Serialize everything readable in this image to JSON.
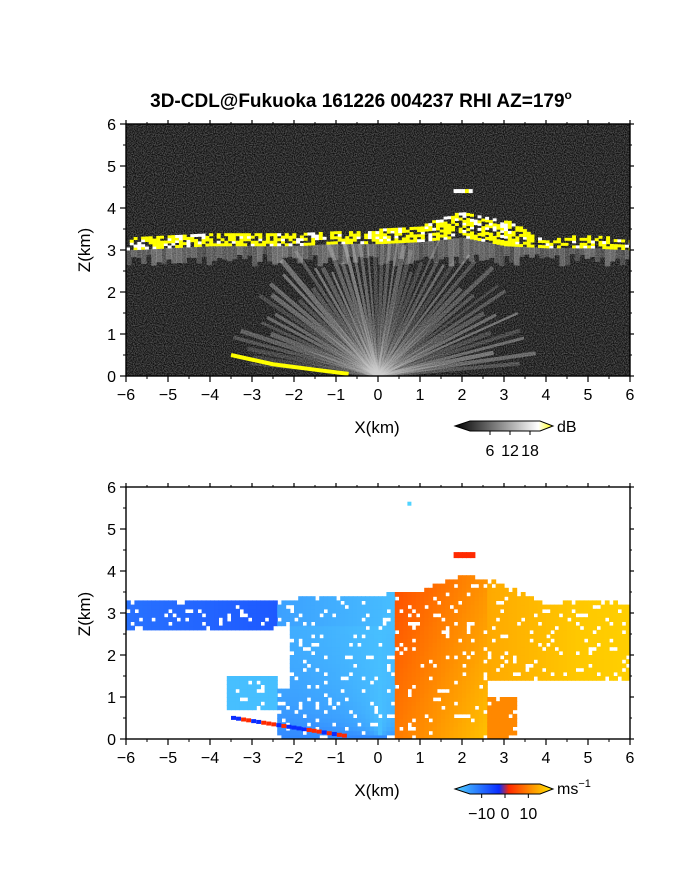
{
  "chart_data": {
    "title": "3D-CDL@Fukuoka 161226 004237 RHI AZ=179",
    "title_degree_mark": "o",
    "panels": [
      {
        "id": "reflectivity",
        "type": "heatmap",
        "xlabel": "X(km)",
        "ylabel": "Z(km)",
        "xlim": [
          -6,
          6
        ],
        "ylim": [
          0,
          6
        ],
        "x_ticks": [
          "−6",
          "−5",
          "−4",
          "−3",
          "−2",
          "−1",
          "0",
          "1",
          "2",
          "3",
          "4",
          "5",
          "6"
        ],
        "y_ticks": [
          "0",
          "1",
          "2",
          "3",
          "4",
          "5",
          "6"
        ],
        "colorbar": {
          "unit": "dB",
          "ticks": [
            "6",
            "12",
            "18"
          ],
          "tick_values": [
            6,
            12,
            18
          ],
          "range": [
            0,
            21
          ],
          "colors": [
            "#000000",
            "#ffffff",
            "#ffff00"
          ]
        },
        "cloud_layer": [
          [
            -6,
            3.0,
            3.3
          ],
          [
            -5,
            3.05,
            3.3
          ],
          [
            -4,
            3.1,
            3.35
          ],
          [
            -3,
            3.1,
            3.35
          ],
          [
            -2,
            3.1,
            3.35
          ],
          [
            -1,
            3.15,
            3.4
          ],
          [
            0,
            3.15,
            3.45
          ],
          [
            1,
            3.2,
            3.55
          ],
          [
            2,
            3.3,
            3.9
          ],
          [
            3,
            3.1,
            3.7
          ],
          [
            4,
            3.05,
            3.2
          ],
          [
            5,
            3.05,
            3.35
          ],
          [
            6,
            3.0,
            3.2
          ]
        ],
        "elevated_echo": [
          [
            1.8,
            4.4
          ],
          [
            2.2,
            4.4
          ]
        ],
        "surface_echo": [
          [
            -3.5,
            0.5
          ],
          [
            -2.5,
            0.28
          ],
          [
            -1.5,
            0.15
          ],
          [
            -0.7,
            0.05
          ]
        ]
      },
      {
        "id": "doppler_velocity",
        "type": "heatmap",
        "xlabel": "X(km)",
        "ylabel": "Z(km)",
        "xlim": [
          -6,
          6
        ],
        "ylim": [
          0,
          6
        ],
        "x_ticks": [
          "−6",
          "−5",
          "−4",
          "−3",
          "−2",
          "−1",
          "0",
          "1",
          "2",
          "3",
          "4",
          "5",
          "6"
        ],
        "y_ticks": [
          "0",
          "1",
          "2",
          "3",
          "4",
          "5",
          "6"
        ],
        "colorbar": {
          "unit": "ms",
          "unit_exponent": "−1",
          "ticks": [
            "−10",
            "0",
            "10"
          ],
          "tick_values": [
            -10,
            0,
            10
          ],
          "range": [
            -15,
            15
          ],
          "colors": [
            "#4fd3ff",
            "#0a2cff",
            "#ff2a00",
            "#ff9a00",
            "#ffe800"
          ]
        },
        "velocity_regions": [
          {
            "x": [
              -6,
              -0.3
            ],
            "z": [
              2.6,
              3.4
            ],
            "v": -8
          },
          {
            "x": [
              -2.5,
              0.3
            ],
            "z": [
              0,
              3.4
            ],
            "v": -12
          },
          {
            "x": [
              0.3,
              2.5
            ],
            "z": [
              0,
              3.8
            ],
            "v": 4
          },
          {
            "x": [
              2.5,
              6
            ],
            "z": [
              1.5,
              3.4
            ],
            "v": 10
          }
        ]
      }
    ]
  }
}
